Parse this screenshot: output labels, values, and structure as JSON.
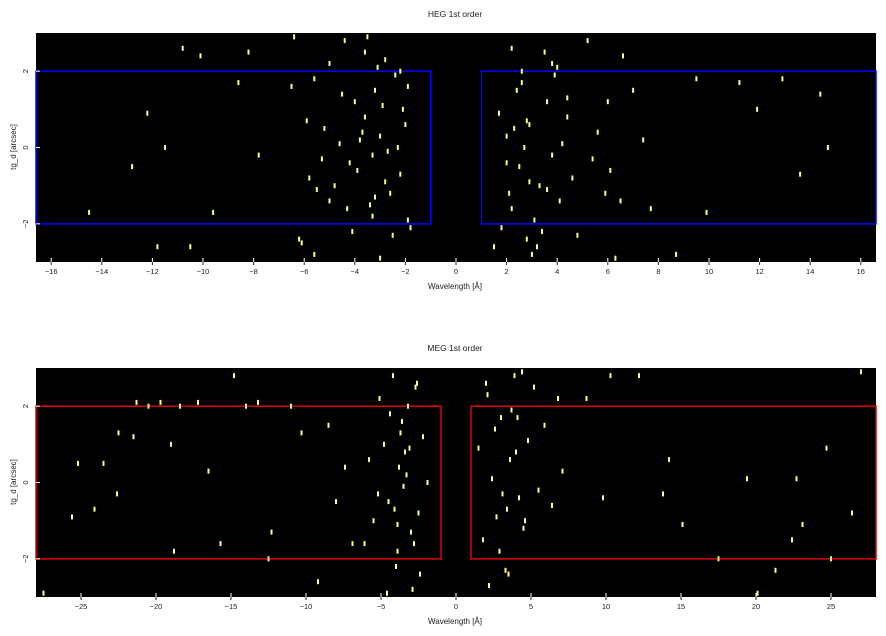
{
  "colors": {
    "background": "#000000",
    "events": "#ffff80",
    "heg_region": "#0000ff",
    "meg_region": "#e00000"
  },
  "chart_data": [
    {
      "type": "scatter",
      "title": "HEG 1st order",
      "xlabel": "Wavelength [Å]",
      "ylabel": "tg_d [arcsec]",
      "xlim": [
        -16.6,
        16.6
      ],
      "ylim": [
        -3.0,
        3.0
      ],
      "xticks": [
        -16,
        -14,
        -12,
        -10,
        -8,
        -6,
        -4,
        -2,
        0,
        2,
        4,
        6,
        8,
        10,
        12,
        14,
        16
      ],
      "yticks": [
        -2,
        0,
        2
      ],
      "grid": false,
      "background": "black",
      "regions": [
        {
          "x0": -16.6,
          "x1": -1.0,
          "y0": -2.0,
          "y1": 2.0,
          "color": "blue"
        },
        {
          "x0": 1.0,
          "x1": 16.6,
          "y0": -2.0,
          "y1": 2.0,
          "color": "blue"
        }
      ],
      "series": [
        {
          "x": [
            -10.8,
            -10.1,
            -12.2,
            -11.5,
            -8.2,
            -6.4,
            -14.5,
            -12.8,
            -10.5,
            -11.8,
            -9.6,
            -7.8,
            -8.6,
            -6.5,
            -5.6,
            -5.2,
            -5.8,
            -5.5,
            -5.0,
            -4.4,
            -4.5,
            -4.0,
            -3.6,
            -3.2,
            -2.8,
            -2.4,
            -2.1,
            -2.2,
            -1.8,
            -2.6,
            -3.3,
            -3.0,
            -3.8,
            -4.2,
            -5.9,
            -5.3,
            -4.8,
            -6.1,
            -3.9,
            -3.4,
            -2.5,
            -2.3,
            -2.0,
            -1.9,
            -3.6,
            -3.1,
            -2.8,
            -4.1,
            -4.6,
            -3.0,
            -3.5,
            -2.2,
            -5.6,
            -2.9,
            -4.3,
            -3.7,
            -2.7,
            -1.9,
            -3.2,
            -6.2,
            -5.0,
            -3.3,
            1.5,
            1.8,
            2.2,
            2.6,
            2.4,
            2.9,
            3.3,
            3.8,
            4.4,
            4.1,
            2.0,
            2.2,
            2.8,
            3.5,
            4.6,
            3.6,
            3.1,
            4.2,
            1.7,
            2.5,
            3.0,
            3.9,
            2.1,
            2.7,
            3.4,
            2.6,
            5.6,
            5.4,
            6.0,
            6.6,
            7.4,
            7.7,
            8.7,
            9.5,
            11.2,
            11.9,
            12.9,
            14.4,
            14.7,
            13.6,
            9.9,
            6.5,
            6.1,
            7.0,
            5.9,
            6.3,
            5.2,
            2.3,
            3.2,
            4.0,
            2.9,
            4.8,
            3.6,
            4.4,
            2.8,
            3.8,
            2.0
          ],
          "y": [
            2.6,
            2.4,
            0.9,
            0.0,
            2.5,
            2.9,
            -1.7,
            -0.5,
            -2.6,
            -2.6,
            -1.7,
            -0.2,
            1.7,
            1.6,
            1.8,
            0.5,
            -0.8,
            -1.1,
            -1.4,
            2.8,
            1.4,
            1.2,
            0.8,
            1.5,
            2.3,
            1.9,
            1.0,
            -0.7,
            -2.1,
            -1.2,
            -1.8,
            0.3,
            0.2,
            -0.4,
            0.7,
            -0.3,
            -1.0,
            -2.5,
            -0.6,
            -1.5,
            -2.3,
            0.0,
            0.6,
            -1.9,
            2.5,
            2.1,
            -0.9,
            -2.2,
            0.1,
            -2.9,
            2.9,
            2.0,
            -2.8,
            1.1,
            -1.6,
            0.4,
            -0.1,
            1.6,
            -1.3,
            -2.4,
            2.2,
            -0.2,
            -2.6,
            -2.1,
            2.6,
            2.0,
            1.5,
            0.6,
            -1.0,
            -0.2,
            0.8,
            -1.4,
            0.3,
            -1.6,
            -2.4,
            2.5,
            -0.8,
            1.2,
            -1.9,
            0.1,
            0.9,
            -0.5,
            -2.8,
            1.9,
            -1.2,
            0.0,
            -2.2,
            1.7,
            0.4,
            -0.3,
            1.2,
            2.4,
            0.2,
            -1.6,
            -2.8,
            1.8,
            1.7,
            1.0,
            1.8,
            1.4,
            0.0,
            -0.7,
            -1.7,
            -1.4,
            -0.6,
            1.5,
            -1.2,
            -2.9,
            2.8,
            0.5,
            -2.6,
            2.1,
            -0.9,
            -2.3,
            -1.1,
            1.3,
            0.7,
            2.2,
            -0.4
          ]
        }
      ]
    },
    {
      "type": "scatter",
      "title": "MEG 1st order",
      "xlabel": "Wavelength [Å]",
      "ylabel": "tg_d [arcsec]",
      "xlim": [
        -28.0,
        28.0
      ],
      "ylim": [
        -3.0,
        3.0
      ],
      "xticks": [
        -25,
        -20,
        -15,
        -10,
        -5,
        0,
        5,
        10,
        15,
        20,
        25
      ],
      "yticks": [
        -2,
        0,
        2
      ],
      "grid": false,
      "background": "black",
      "regions": [
        {
          "x0": -28.0,
          "x1": -1.0,
          "y0": -2.0,
          "y1": 2.0,
          "color": "red"
        },
        {
          "x0": 1.0,
          "x1": 28.0,
          "y0": -2.0,
          "y1": 2.0,
          "color": "red"
        }
      ],
      "series": [
        {
          "x": [
            -25.2,
            -24.1,
            -22.5,
            -21.3,
            -19.0,
            -18.4,
            -17.2,
            -16.5,
            -14.8,
            -14.0,
            -13.2,
            -12.3,
            -11.0,
            -10.3,
            -8.5,
            -8.0,
            -6.9,
            -7.4,
            -20.5,
            -22.6,
            -18.8,
            -15.7,
            -12.5,
            -9.2,
            -27.5,
            -25.6,
            -23.5,
            -21.5,
            -19.7,
            -6.1,
            -5.8,
            -5.5,
            -5.1,
            -4.8,
            -4.5,
            -4.2,
            -3.9,
            -3.6,
            -3.3,
            -3.0,
            -2.7,
            -2.5,
            -2.2,
            -1.9,
            -4.0,
            -3.5,
            -3.1,
            -2.8,
            -4.4,
            -3.8,
            -2.4,
            -3.2,
            -4.1,
            -3.7,
            -2.9,
            -5.2,
            -3.4,
            -2.6,
            -3.9,
            -4.6,
            1.5,
            1.8,
            2.1,
            2.4,
            2.7,
            3.0,
            3.3,
            3.6,
            3.9,
            4.2,
            4.5,
            4.8,
            5.2,
            5.5,
            5.9,
            6.4,
            6.8,
            7.1,
            2.2,
            2.6,
            3.1,
            3.5,
            4.0,
            4.4,
            2.9,
            3.7,
            4.6,
            2.0,
            3.4,
            4.1,
            10.3,
            12.2,
            14.2,
            15.1,
            17.5,
            20.1,
            21.3,
            22.4,
            22.7,
            23.1,
            24.7,
            26.4,
            27.0,
            25.0,
            19.4,
            13.8,
            9.8,
            8.7
          ],
          "y": [
            0.5,
            -0.7,
            1.3,
            2.1,
            1.0,
            2.0,
            2.1,
            0.3,
            2.8,
            2.0,
            2.1,
            -1.3,
            2.0,
            1.3,
            1.5,
            -0.5,
            -1.6,
            0.4,
            2.0,
            -0.3,
            -1.8,
            -1.6,
            -2.0,
            -2.6,
            -2.9,
            -0.9,
            0.5,
            1.2,
            2.1,
            -1.6,
            0.6,
            -1.0,
            2.2,
            1.0,
            -0.5,
            2.8,
            -1.8,
            1.6,
            0.2,
            -1.3,
            2.5,
            -0.8,
            1.2,
            0.0,
            -2.2,
            -0.1,
            0.9,
            -1.6,
            1.8,
            0.4,
            -2.4,
            2.0,
            -0.7,
            1.3,
            -2.8,
            -0.3,
            0.8,
            2.6,
            -1.1,
            -2.9,
            0.9,
            -1.5,
            2.3,
            0.1,
            -0.9,
            1.7,
            -2.3,
            0.6,
            2.8,
            -0.4,
            -1.2,
            1.1,
            2.5,
            -0.2,
            1.5,
            -0.6,
            2.2,
            0.3,
            -2.7,
            1.4,
            -0.3,
            -2.4,
            0.8,
            2.9,
            -1.8,
            1.9,
            -1.0,
            2.6,
            -0.7,
            1.7,
            2.8,
            2.8,
            0.6,
            -1.1,
            -2.0,
            -2.9,
            -2.3,
            -1.5,
            0.1,
            -1.1,
            0.9,
            -0.8,
            2.9,
            -2.0,
            0.1,
            -0.3,
            -0.4,
            2.2
          ]
        }
      ]
    }
  ]
}
